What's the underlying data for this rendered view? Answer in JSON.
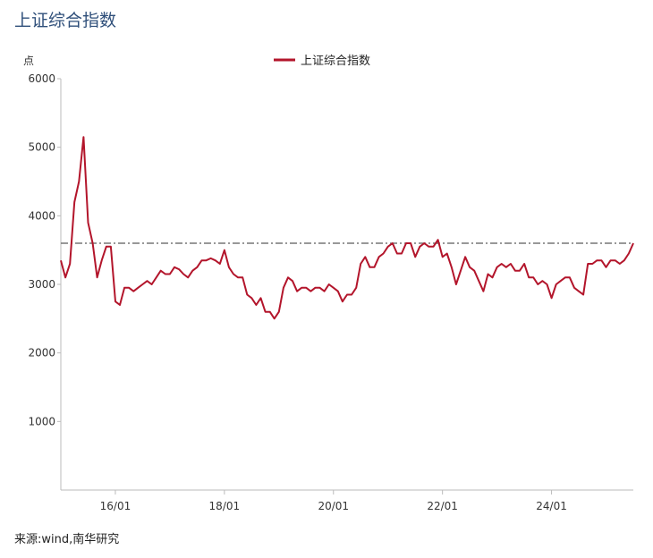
{
  "header": {
    "title": "上证综合指数"
  },
  "footer": {
    "source": "来源:wind,南华研究"
  },
  "chart_data": {
    "type": "line",
    "title": "上证综合指数",
    "ylabel": "点",
    "xlabel": "",
    "ylim": [
      0,
      6000
    ],
    "yticks": [
      1000,
      2000,
      3000,
      4000,
      5000,
      6000
    ],
    "xlim": [
      "2015-01",
      "2025-07"
    ],
    "xticks": [
      {
        "value": "2016-01",
        "label": "16/01"
      },
      {
        "value": "2018-01",
        "label": "18/01"
      },
      {
        "value": "2020-01",
        "label": "20/01"
      },
      {
        "value": "2022-01",
        "label": "22/01"
      },
      {
        "value": "2024-01",
        "label": "24/01"
      }
    ],
    "legend": {
      "position": "top-center"
    },
    "reference_line": {
      "y": 3600,
      "style": "dash-dot",
      "color": "#777777"
    },
    "series": [
      {
        "name": "上证综合指数",
        "color": "#b3152b",
        "x": [
          "2015-01",
          "2015-02",
          "2015-03",
          "2015-04",
          "2015-05",
          "2015-06",
          "2015-07",
          "2015-08",
          "2015-09",
          "2015-10",
          "2015-11",
          "2015-12",
          "2016-01",
          "2016-02",
          "2016-03",
          "2016-04",
          "2016-05",
          "2016-06",
          "2016-07",
          "2016-08",
          "2016-09",
          "2016-10",
          "2016-11",
          "2016-12",
          "2017-01",
          "2017-02",
          "2017-03",
          "2017-04",
          "2017-05",
          "2017-06",
          "2017-07",
          "2017-08",
          "2017-09",
          "2017-10",
          "2017-11",
          "2017-12",
          "2018-01",
          "2018-02",
          "2018-03",
          "2018-04",
          "2018-05",
          "2018-06",
          "2018-07",
          "2018-08",
          "2018-09",
          "2018-10",
          "2018-11",
          "2018-12",
          "2019-01",
          "2019-02",
          "2019-03",
          "2019-04",
          "2019-05",
          "2019-06",
          "2019-07",
          "2019-08",
          "2019-09",
          "2019-10",
          "2019-11",
          "2019-12",
          "2020-01",
          "2020-02",
          "2020-03",
          "2020-04",
          "2020-05",
          "2020-06",
          "2020-07",
          "2020-08",
          "2020-09",
          "2020-10",
          "2020-11",
          "2020-12",
          "2021-01",
          "2021-02",
          "2021-03",
          "2021-04",
          "2021-05",
          "2021-06",
          "2021-07",
          "2021-08",
          "2021-09",
          "2021-10",
          "2021-11",
          "2021-12",
          "2022-01",
          "2022-02",
          "2022-03",
          "2022-04",
          "2022-05",
          "2022-06",
          "2022-07",
          "2022-08",
          "2022-09",
          "2022-10",
          "2022-11",
          "2022-12",
          "2023-01",
          "2023-02",
          "2023-03",
          "2023-04",
          "2023-05",
          "2023-06",
          "2023-07",
          "2023-08",
          "2023-09",
          "2023-10",
          "2023-11",
          "2023-12",
          "2024-01",
          "2024-02",
          "2024-03",
          "2024-04",
          "2024-05",
          "2024-06",
          "2024-07",
          "2024-08",
          "2024-09",
          "2024-10",
          "2024-11",
          "2024-12",
          "2025-01",
          "2025-02",
          "2025-03",
          "2025-04",
          "2025-05",
          "2025-06",
          "2025-07"
        ],
        "values": [
          3350,
          3100,
          3300,
          4200,
          4500,
          5150,
          3900,
          3600,
          3100,
          3350,
          3550,
          3550,
          2750,
          2700,
          2950,
          2950,
          2900,
          2950,
          3000,
          3050,
          3000,
          3100,
          3200,
          3150,
          3150,
          3250,
          3220,
          3150,
          3100,
          3200,
          3250,
          3350,
          3350,
          3380,
          3350,
          3300,
          3500,
          3250,
          3150,
          3100,
          3100,
          2850,
          2800,
          2700,
          2800,
          2600,
          2600,
          2500,
          2600,
          2950,
          3100,
          3050,
          2900,
          2950,
          2950,
          2900,
          2950,
          2950,
          2900,
          3000,
          2950,
          2900,
          2750,
          2850,
          2850,
          2950,
          3300,
          3400,
          3250,
          3250,
          3400,
          3450,
          3550,
          3600,
          3450,
          3450,
          3600,
          3600,
          3400,
          3550,
          3600,
          3550,
          3550,
          3650,
          3400,
          3450,
          3250,
          3000,
          3200,
          3400,
          3250,
          3200,
          3050,
          2900,
          3150,
          3100,
          3250,
          3300,
          3250,
          3300,
          3200,
          3200,
          3300,
          3100,
          3100,
          3000,
          3050,
          3000,
          2800,
          3000,
          3050,
          3100,
          3100,
          2950,
          2900,
          2850,
          3300,
          3300,
          3350,
          3350,
          3250,
          3350,
          3350,
          3300,
          3350,
          3450,
          3600
        ]
      }
    ]
  }
}
